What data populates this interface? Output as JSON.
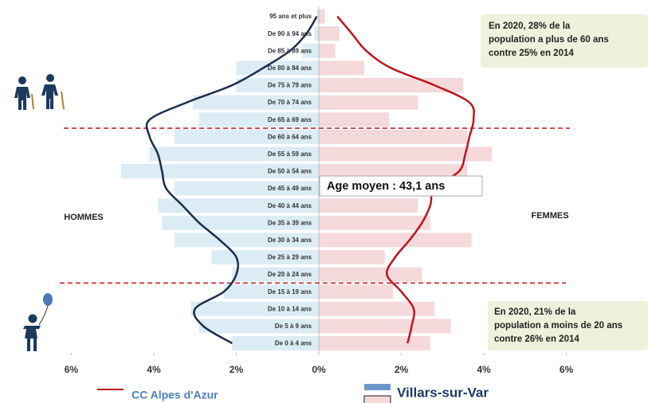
{
  "chart_data": {
    "type": "pyramid",
    "categories": [
      "De 0 à 4 ans",
      "De 5 à 9 ans",
      "De 10 à 14 ans",
      "De 15 à 19 ans",
      "De 20 à 24 ans",
      "De 25 à 29 ans",
      "De 30 à 34 ans",
      "De 35 à 39 ans",
      "De 40 à 44 ans",
      "De 45 à 49 ans",
      "De 50 à 54 ans",
      "De 55 à 59 ans",
      "De 60 à 64 ans",
      "De 65 à 69 ans",
      "De 70 à 74 ans",
      "De 75 à 79 ans",
      "De 80 à 84 ans",
      "De 85 à 89 ans",
      "De 90 à 94 ans",
      "95 ans et plus"
    ],
    "series": [
      {
        "name": "Villars-sur-Var",
        "kind": "bar",
        "color_hommes": "#dbecf4",
        "color_femmes": "#f6d9da",
        "hommes": [
          2.1,
          2.9,
          3.1,
          2.3,
          2.1,
          2.6,
          3.5,
          3.8,
          3.9,
          3.5,
          4.8,
          4.1,
          3.5,
          2.9,
          3.05,
          2.0,
          2.0,
          0.4,
          0.1,
          0.05
        ],
        "femmes": [
          2.7,
          3.2,
          2.8,
          1.8,
          2.5,
          1.6,
          3.7,
          2.7,
          2.4,
          3.6,
          3.6,
          4.2,
          3.6,
          1.7,
          2.4,
          3.5,
          1.1,
          0.4,
          0.5,
          0.15
        ]
      },
      {
        "name": "CC Alpes d'Azur",
        "kind": "line",
        "color_hommes": "#1c2d4d",
        "color_femmes": "#c0141e",
        "hommes": [
          2.1,
          2.8,
          3.0,
          2.3,
          2.0,
          2.0,
          2.4,
          2.9,
          3.3,
          3.7,
          3.8,
          3.9,
          4.1,
          4.1,
          3.2,
          2.1,
          1.35,
          0.7,
          0.3,
          0.05
        ],
        "femmes": [
          2.15,
          2.25,
          2.3,
          2.0,
          1.65,
          1.85,
          2.2,
          2.5,
          2.7,
          2.8,
          3.4,
          3.55,
          3.65,
          3.75,
          3.65,
          2.8,
          1.75,
          1.15,
          0.8,
          0.45
        ]
      }
    ],
    "xlim": [
      -6.8,
      6.8
    ],
    "xticks": [
      {
        "value": -6,
        "label": "6%"
      },
      {
        "value": -4,
        "label": "4%"
      },
      {
        "value": -2,
        "label": "2%"
      },
      {
        "value": 0,
        "label": "0%"
      },
      {
        "value": 2,
        "label": "2%"
      },
      {
        "value": 4,
        "label": "4%"
      },
      {
        "value": 6,
        "label": "6%"
      }
    ],
    "side_labels": [
      "HOMMES",
      "FEMMES"
    ],
    "annotations": {
      "age_moyen": "Age moyen : 43,1 ans",
      "top_note": [
        "En 2020,  28% de la",
        "population a plus de 60 ans",
        "contre 25% en 2014"
      ],
      "bottom_note": [
        "En 2020, 21% de la",
        "population a moins de 20 ans",
        "contre 26% en 2014"
      ]
    }
  }
}
